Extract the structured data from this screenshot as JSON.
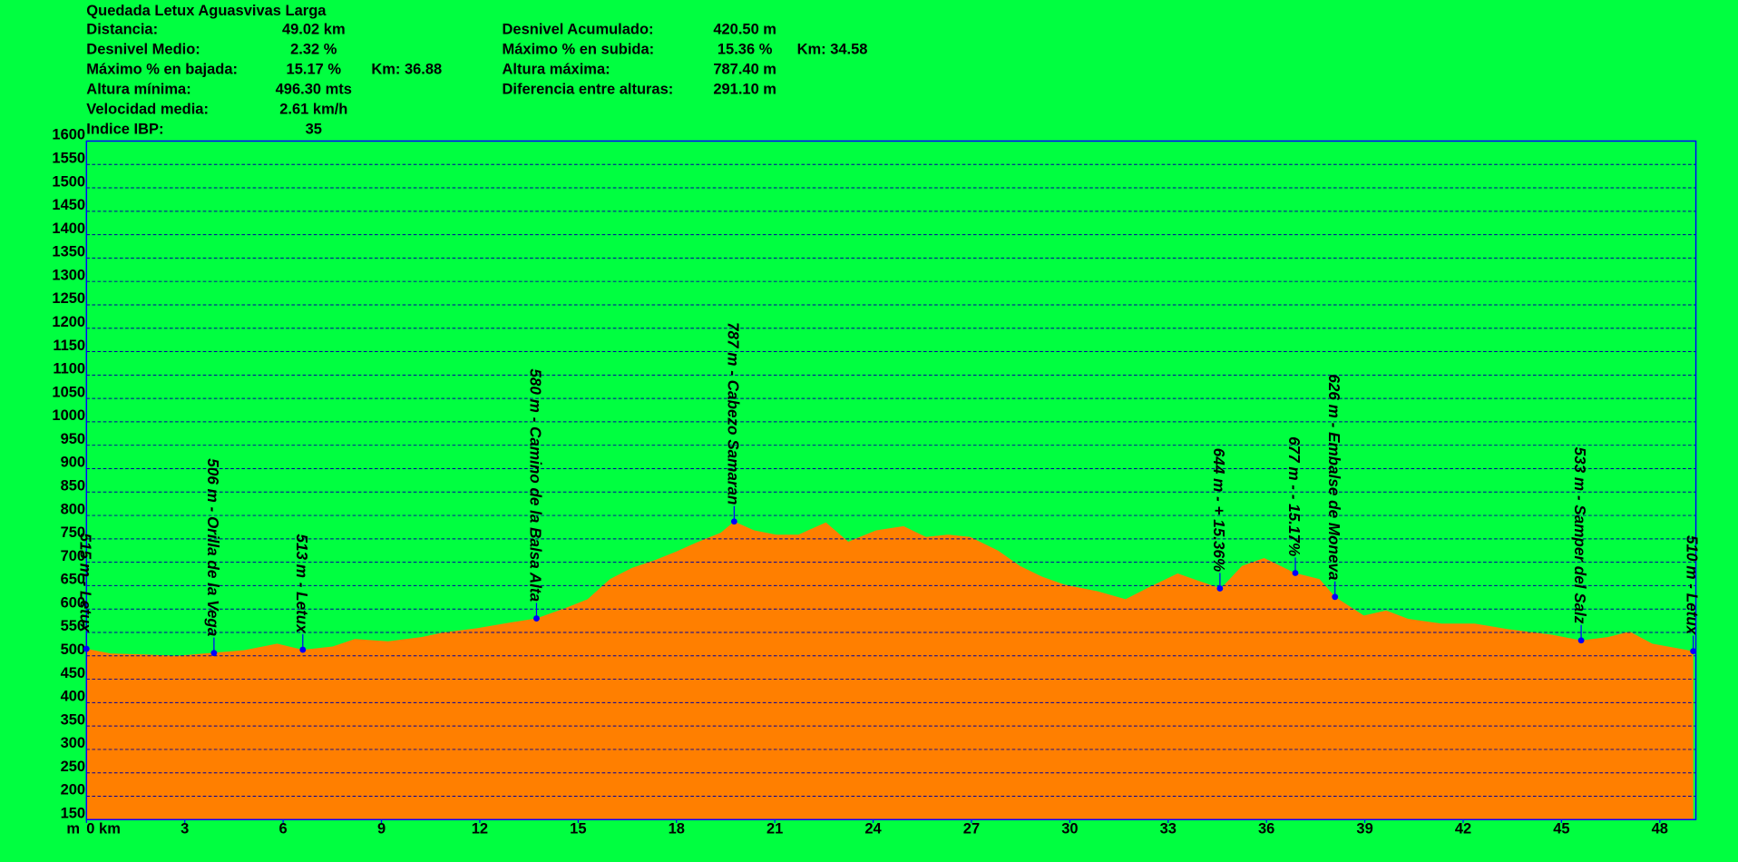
{
  "chart_data": {
    "type": "area",
    "title": "Quedada Letux Aguasvivas Larga",
    "stats_left": [
      {
        "label": "Distancia:",
        "value": "49.02 km"
      },
      {
        "label": "Desnivel Medio:",
        "value": "2.32 %"
      },
      {
        "label": "Máximo % en bajada:",
        "value": "15.17 %",
        "extra": "Km: 36.88"
      },
      {
        "label": "Altura mínima:",
        "value": "496.30 mts"
      },
      {
        "label": "Velocidad media:",
        "value": "2.61 km/h"
      },
      {
        "label": "Indice IBP:",
        "value": "35"
      }
    ],
    "stats_right": [
      {
        "label": "Desnivel Acumulado:",
        "value": "420.50 m"
      },
      {
        "label": "Máximo % en subida:",
        "value": "15.36 %",
        "extra": "Km: 34.58"
      },
      {
        "label": "Altura máxima:",
        "value": "787.40 m"
      },
      {
        "label": "Diferencia entre alturas:",
        "value": "291.10 m"
      }
    ],
    "ylabel": "m",
    "x": [
      0,
      0.74,
      1.76,
      2.77,
      3.79,
      4.8,
      5.82,
      6.6,
      7.51,
      8.19,
      9.2,
      10.22,
      10.89,
      11.91,
      12.92,
      13.73,
      14.61,
      15.29,
      15.97,
      16.64,
      17.32,
      18.0,
      18.67,
      19.35,
      19.76,
      20.37,
      21.04,
      21.72,
      22.56,
      23.24,
      24.09,
      24.93,
      25.61,
      26.29,
      26.96,
      27.81,
      28.48,
      29.16,
      29.84,
      30.85,
      31.7,
      32.37,
      33.29,
      33.9,
      34.61,
      35.25,
      35.93,
      36.87,
      37.62,
      38.09,
      38.97,
      39.65,
      40.32,
      41.34,
      42.35,
      43.37,
      44.72,
      45.6,
      46.41,
      47.08,
      47.77,
      49.02
    ],
    "values": [
      515,
      505,
      503,
      500,
      506,
      512,
      526,
      513,
      520,
      536,
      531,
      540,
      550,
      559,
      571,
      580,
      602,
      621,
      664,
      688,
      704,
      723,
      744,
      763,
      787,
      768,
      759,
      759,
      785,
      744,
      768,
      777,
      754,
      759,
      754,
      725,
      692,
      669,
      652,
      638,
      621,
      645,
      676,
      661,
      644,
      692,
      709,
      677,
      664,
      626,
      586,
      597,
      579,
      569,
      569,
      557,
      545,
      533,
      540,
      552,
      526,
      510
    ],
    "color": "#ff7f00",
    "waypoints": [
      {
        "label": "515 m - Letux",
        "x": 0,
        "y": 515
      },
      {
        "label": "506 m - Orilla de la Vega",
        "x": 3.89,
        "y": 506
      },
      {
        "label": "513 m - Letux",
        "x": 6.6,
        "y": 513
      },
      {
        "label": "580 m - Camino de la Balsa Alta",
        "x": 13.73,
        "y": 580
      },
      {
        "label": "787 m - Cabezo Samaran",
        "x": 19.76,
        "y": 787
      },
      {
        "label": "644 m - + 15.36%",
        "x": 34.58,
        "y": 644
      },
      {
        "label": "677 m - - 15.17%",
        "x": 36.88,
        "y": 677
      },
      {
        "label": "626 m - Embalse de Moneva",
        "x": 38.09,
        "y": 626
      },
      {
        "label": "533 m - Samper del Salz",
        "x": 45.6,
        "y": 533
      },
      {
        "label": "510 m - Letux",
        "x": 49.02,
        "y": 510
      }
    ],
    "xlim": [
      0,
      49.1
    ],
    "xticks": [
      {
        "value": 0,
        "label": "0 km"
      },
      3,
      6,
      9,
      12,
      15,
      18,
      21,
      24,
      27,
      30,
      33,
      36,
      39,
      42,
      45,
      48
    ],
    "ylim": [
      150,
      1600
    ],
    "yticks": [
      150,
      200,
      250,
      300,
      350,
      400,
      450,
      500,
      550,
      600,
      650,
      700,
      750,
      800,
      850,
      900,
      950,
      1000,
      1050,
      1100,
      1150,
      1200,
      1250,
      1300,
      1350,
      1400,
      1450,
      1500,
      1550,
      1600
    ],
    "grid": true
  }
}
